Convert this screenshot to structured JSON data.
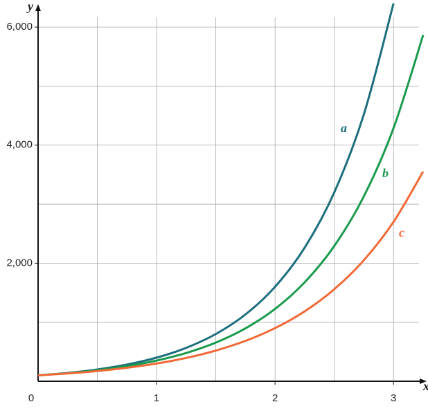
{
  "chart_data": {
    "type": "line",
    "x_label": "x",
    "y_label": "y",
    "x": [
      0,
      0.25,
      0.5,
      0.75,
      1,
      1.25,
      1.5,
      1.75,
      2,
      2.25,
      2.5,
      2.75,
      3,
      3.25
    ],
    "series": [
      {
        "name": "a",
        "color": "#1c6e7d",
        "values": [
          100,
          141,
          200,
          283,
          400,
          566,
          800,
          1131,
          1600,
          2263,
          3200,
          4525,
          6400,
          null
        ]
      },
      {
        "name": "b",
        "color": "#1a9a4c",
        "values": [
          100,
          137,
          187,
          256,
          350,
          479,
          655,
          896,
          1225,
          1676,
          2292,
          3135,
          4288,
          5864
        ]
      },
      {
        "name": "c",
        "color": "#f26836",
        "values": [
          100,
          132,
          173,
          228,
          300,
          395,
          520,
          684,
          900,
          1184,
          1559,
          2052,
          2700,
          3553
        ]
      }
    ],
    "xlim": [
      0,
      3.25
    ],
    "ylim": [
      0,
      6400
    ],
    "xticks": [
      0,
      1,
      2,
      3
    ],
    "yticks": [
      {
        "value": 2000,
        "label": "2,000"
      },
      {
        "value": 4000,
        "label": "4,000"
      },
      {
        "value": 6000,
        "label": "6,000"
      }
    ],
    "xgrid": [
      0.5,
      1,
      1.5,
      2,
      2.5,
      3
    ],
    "ygrid": [
      1000,
      2000,
      3000,
      4000,
      5000,
      6000
    ],
    "grid": true
  }
}
